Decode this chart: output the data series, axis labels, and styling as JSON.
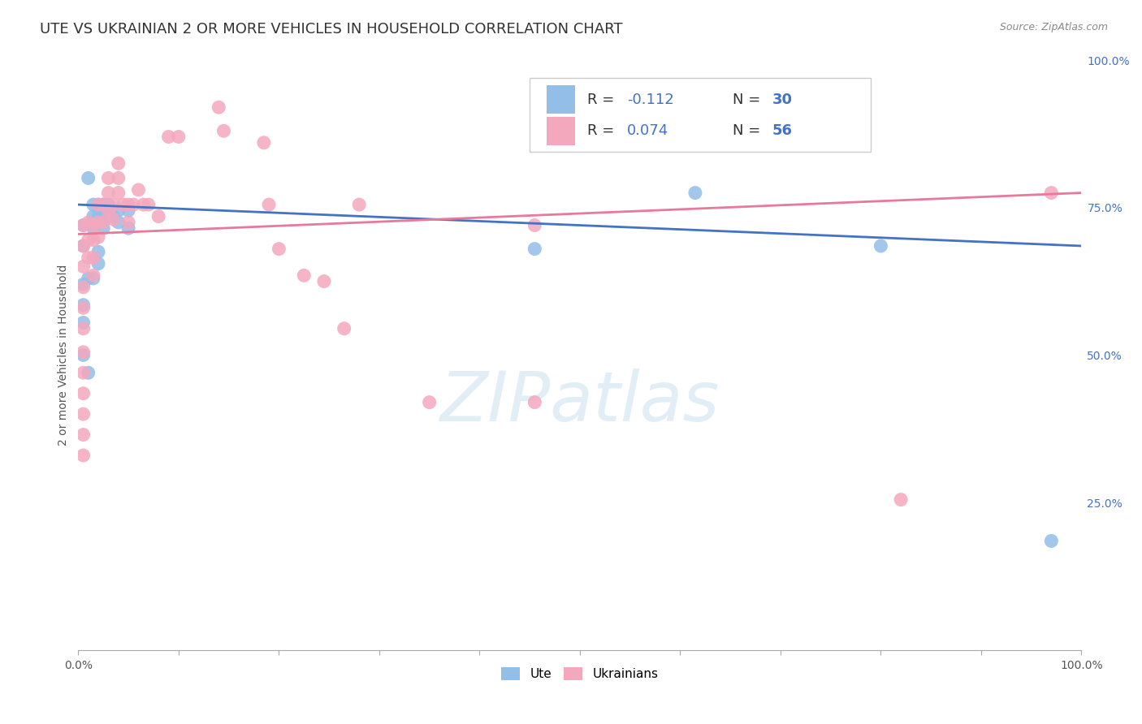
{
  "title": "UTE VS UKRAINIAN 2 OR MORE VEHICLES IN HOUSEHOLD CORRELATION CHART",
  "source": "Source: ZipAtlas.com",
  "ylabel": "2 or more Vehicles in Household",
  "watermark": "ZIPatlas",
  "blue_color": "#92bee8",
  "pink_color": "#f4a8be",
  "blue_line_color": "#4472c4",
  "pink_line_color": "#e8799a",
  "blue_text_color": "#4472c4",
  "ute_points": [
    [
      0.005,
      0.72
    ],
    [
      0.01,
      0.8
    ],
    [
      0.005,
      0.685
    ],
    [
      0.015,
      0.755
    ],
    [
      0.015,
      0.735
    ],
    [
      0.015,
      0.715
    ],
    [
      0.02,
      0.755
    ],
    [
      0.02,
      0.735
    ],
    [
      0.025,
      0.755
    ],
    [
      0.025,
      0.735
    ],
    [
      0.025,
      0.715
    ],
    [
      0.03,
      0.755
    ],
    [
      0.03,
      0.735
    ],
    [
      0.035,
      0.735
    ],
    [
      0.04,
      0.745
    ],
    [
      0.04,
      0.725
    ],
    [
      0.05,
      0.745
    ],
    [
      0.05,
      0.715
    ],
    [
      0.005,
      0.62
    ],
    [
      0.005,
      0.585
    ],
    [
      0.005,
      0.555
    ],
    [
      0.01,
      0.63
    ],
    [
      0.015,
      0.63
    ],
    [
      0.02,
      0.675
    ],
    [
      0.02,
      0.655
    ],
    [
      0.005,
      0.5
    ],
    [
      0.01,
      0.47
    ],
    [
      0.455,
      0.68
    ],
    [
      0.615,
      0.775
    ],
    [
      0.8,
      0.685
    ],
    [
      0.97,
      0.185
    ]
  ],
  "ukr_points": [
    [
      0.005,
      0.72
    ],
    [
      0.005,
      0.685
    ],
    [
      0.005,
      0.65
    ],
    [
      0.005,
      0.615
    ],
    [
      0.005,
      0.58
    ],
    [
      0.005,
      0.545
    ],
    [
      0.005,
      0.505
    ],
    [
      0.005,
      0.47
    ],
    [
      0.005,
      0.435
    ],
    [
      0.005,
      0.4
    ],
    [
      0.005,
      0.365
    ],
    [
      0.005,
      0.33
    ],
    [
      0.01,
      0.725
    ],
    [
      0.01,
      0.695
    ],
    [
      0.01,
      0.665
    ],
    [
      0.015,
      0.72
    ],
    [
      0.015,
      0.695
    ],
    [
      0.015,
      0.665
    ],
    [
      0.015,
      0.635
    ],
    [
      0.02,
      0.755
    ],
    [
      0.02,
      0.725
    ],
    [
      0.02,
      0.7
    ],
    [
      0.025,
      0.755
    ],
    [
      0.025,
      0.725
    ],
    [
      0.03,
      0.8
    ],
    [
      0.03,
      0.775
    ],
    [
      0.03,
      0.745
    ],
    [
      0.035,
      0.755
    ],
    [
      0.035,
      0.73
    ],
    [
      0.04,
      0.825
    ],
    [
      0.04,
      0.8
    ],
    [
      0.04,
      0.775
    ],
    [
      0.045,
      0.755
    ],
    [
      0.05,
      0.755
    ],
    [
      0.05,
      0.725
    ],
    [
      0.055,
      0.755
    ],
    [
      0.06,
      0.78
    ],
    [
      0.065,
      0.755
    ],
    [
      0.07,
      0.755
    ],
    [
      0.08,
      0.735
    ],
    [
      0.09,
      0.87
    ],
    [
      0.1,
      0.87
    ],
    [
      0.14,
      0.92
    ],
    [
      0.145,
      0.88
    ],
    [
      0.185,
      0.86
    ],
    [
      0.19,
      0.755
    ],
    [
      0.2,
      0.68
    ],
    [
      0.225,
      0.635
    ],
    [
      0.245,
      0.625
    ],
    [
      0.265,
      0.545
    ],
    [
      0.28,
      0.755
    ],
    [
      0.35,
      0.42
    ],
    [
      0.455,
      0.72
    ],
    [
      0.455,
      0.42
    ],
    [
      0.82,
      0.255
    ],
    [
      0.97,
      0.775
    ]
  ],
  "xlim": [
    0,
    1
  ],
  "ylim": [
    0,
    1
  ],
  "background_color": "#ffffff",
  "grid_color": "#cccccc",
  "title_fontsize": 13,
  "axis_label_fontsize": 10,
  "tick_label_fontsize": 10,
  "legend_fontsize": 13,
  "ute_line": [
    0.0,
    1.0,
    0.755,
    0.685
  ],
  "ukr_line": [
    0.0,
    1.0,
    0.705,
    0.775
  ]
}
